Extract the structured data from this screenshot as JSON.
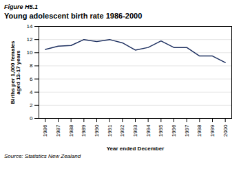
{
  "chart_data": {
    "type": "line",
    "figure_label": "Figure H5.1",
    "title": "Young adolescent birth rate 1986-2000",
    "xlabel": "Year ended December",
    "ylabel": "Births per 1,000 females\naged 13-17 years",
    "source": "Source: Statistics New Zealand",
    "x": [
      1986,
      1987,
      1988,
      1989,
      1990,
      1991,
      1992,
      1993,
      1994,
      1995,
      1996,
      1997,
      1998,
      1999,
      2000
    ],
    "values": [
      10.5,
      11.0,
      11.1,
      12.0,
      11.7,
      12.0,
      11.5,
      10.4,
      10.8,
      11.8,
      10.8,
      10.8,
      9.5,
      9.5,
      8.5
    ],
    "color": "#1e3060",
    "xlim": [
      1985.5,
      2000.5
    ],
    "xticks": [
      1986,
      1987,
      1988,
      1989,
      1990,
      1991,
      1992,
      1993,
      1994,
      1995,
      1996,
      1997,
      1998,
      1999,
      2000
    ],
    "ylim": [
      0,
      14
    ],
    "yticks": [
      0,
      2,
      4,
      6,
      8,
      10,
      12,
      14
    ],
    "grid": true
  }
}
